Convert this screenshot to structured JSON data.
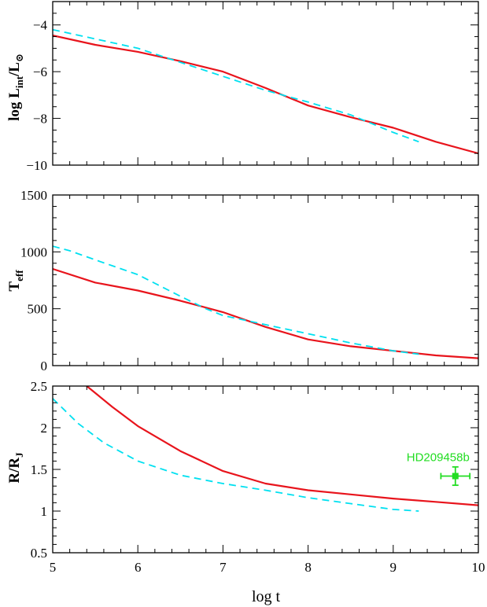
{
  "chart_data": [
    {
      "type": "line",
      "panel": "top",
      "ylabel": "log L_int/L_⊙",
      "ylabel_main": "log L",
      "ylabel_sub": "int",
      "ylabel_tail": "/L",
      "ylabel_tail_sub": "⊙",
      "xlim": [
        5,
        10
      ],
      "ylim": [
        -10,
        -3
      ],
      "yticks": [
        -10,
        -8,
        -6,
        -4
      ],
      "ytick_labels": [
        "−10",
        "−8",
        "−6",
        "−4"
      ],
      "series": [
        {
          "color": "#e8141c",
          "dash": "solid",
          "x": [
            5.0,
            5.5,
            6.0,
            6.5,
            7.0,
            7.5,
            8.0,
            8.5,
            9.0,
            9.5,
            10.0
          ],
          "y": [
            -4.45,
            -4.85,
            -5.15,
            -5.55,
            -6.0,
            -6.7,
            -7.45,
            -7.95,
            -8.4,
            -9.0,
            -9.5
          ]
        },
        {
          "color": "#00e0f0",
          "dash": "dashed",
          "x": [
            5.0,
            5.5,
            6.0,
            6.5,
            7.0,
            7.5,
            8.0,
            8.5,
            9.0,
            9.3
          ],
          "y": [
            -4.2,
            -4.6,
            -5.0,
            -5.6,
            -6.2,
            -6.8,
            -7.3,
            -7.85,
            -8.6,
            -9.0
          ]
        }
      ]
    },
    {
      "type": "line",
      "panel": "middle",
      "ylabel": "T_eff",
      "ylabel_main": "T",
      "ylabel_sub": "eff",
      "xlim": [
        5,
        10
      ],
      "ylim": [
        0,
        1500
      ],
      "yticks": [
        0,
        500,
        1000,
        1500
      ],
      "ytick_labels": [
        "0",
        "500",
        "1000",
        "1500"
      ],
      "series": [
        {
          "color": "#e8141c",
          "dash": "solid",
          "x": [
            5.0,
            5.5,
            6.0,
            6.5,
            7.0,
            7.5,
            8.0,
            8.5,
            9.0,
            9.5,
            10.0
          ],
          "y": [
            850,
            730,
            660,
            570,
            470,
            340,
            230,
            170,
            130,
            90,
            65
          ]
        },
        {
          "color": "#00e0f0",
          "dash": "dashed",
          "x": [
            5.0,
            5.2,
            5.5,
            6.0,
            6.5,
            6.8,
            7.0,
            7.5,
            8.0,
            8.5,
            9.0,
            9.3
          ],
          "y": [
            1050,
            1010,
            930,
            800,
            610,
            500,
            440,
            360,
            280,
            200,
            130,
            100
          ]
        }
      ]
    },
    {
      "type": "line",
      "panel": "bottom",
      "ylabel": "R/R_J",
      "ylabel_main": "R/R",
      "ylabel_sub": "J",
      "xlabel": "log t",
      "xlim": [
        5,
        10
      ],
      "ylim": [
        0.5,
        2.5
      ],
      "xticks": [
        5,
        6,
        7,
        8,
        9,
        10
      ],
      "xtick_labels": [
        "5",
        "6",
        "7",
        "8",
        "9",
        "10"
      ],
      "yticks": [
        0.5,
        1,
        1.5,
        2,
        2.5
      ],
      "ytick_labels": [
        "0.5",
        "1",
        "1.5",
        "2",
        "2.5"
      ],
      "series": [
        {
          "color": "#e8141c",
          "dash": "solid",
          "x": [
            5.4,
            5.7,
            6.0,
            6.5,
            7.0,
            7.5,
            8.0,
            8.5,
            9.0,
            9.5,
            10.0
          ],
          "y": [
            2.5,
            2.25,
            2.02,
            1.72,
            1.48,
            1.33,
            1.25,
            1.2,
            1.15,
            1.11,
            1.07
          ]
        },
        {
          "color": "#00e0f0",
          "dash": "dashed",
          "x": [
            5.0,
            5.3,
            5.6,
            6.0,
            6.5,
            7.0,
            7.5,
            8.0,
            8.5,
            9.0,
            9.3
          ],
          "y": [
            2.35,
            2.05,
            1.82,
            1.6,
            1.43,
            1.33,
            1.25,
            1.16,
            1.09,
            1.02,
            1.0
          ]
        }
      ],
      "annotation": {
        "text": "HD209458b",
        "color": "#22dd22",
        "point": {
          "x": 9.73,
          "y": 1.42,
          "xerr": 0.17,
          "yerr": 0.11
        }
      }
    }
  ]
}
